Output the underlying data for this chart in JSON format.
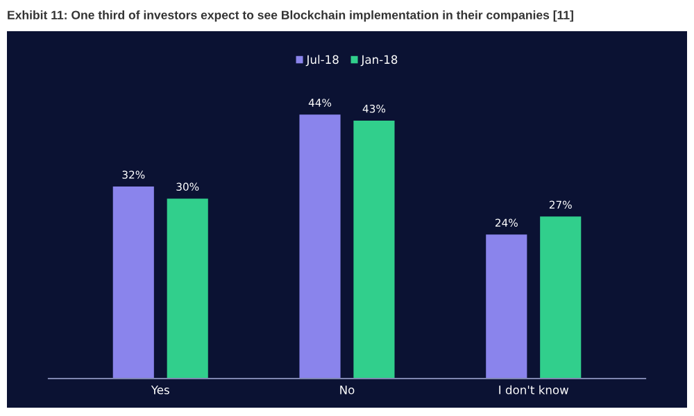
{
  "chart_data": {
    "type": "bar",
    "title": "Exhibit 11: One third of investors expect to see Blockchain implementation in their companies [11]",
    "categories": [
      "Yes",
      "No",
      "I don't know"
    ],
    "series": [
      {
        "name": "Jul-18",
        "color": "#8a84ec",
        "values": [
          32,
          44,
          24
        ],
        "value_labels": [
          "32%",
          "44%",
          "24%"
        ]
      },
      {
        "name": "Jan-18",
        "color": "#31cf8c",
        "values": [
          30,
          43,
          27
        ],
        "value_labels": [
          "30%",
          "43%",
          "27%"
        ]
      }
    ],
    "legend": "top",
    "grid": false
  }
}
